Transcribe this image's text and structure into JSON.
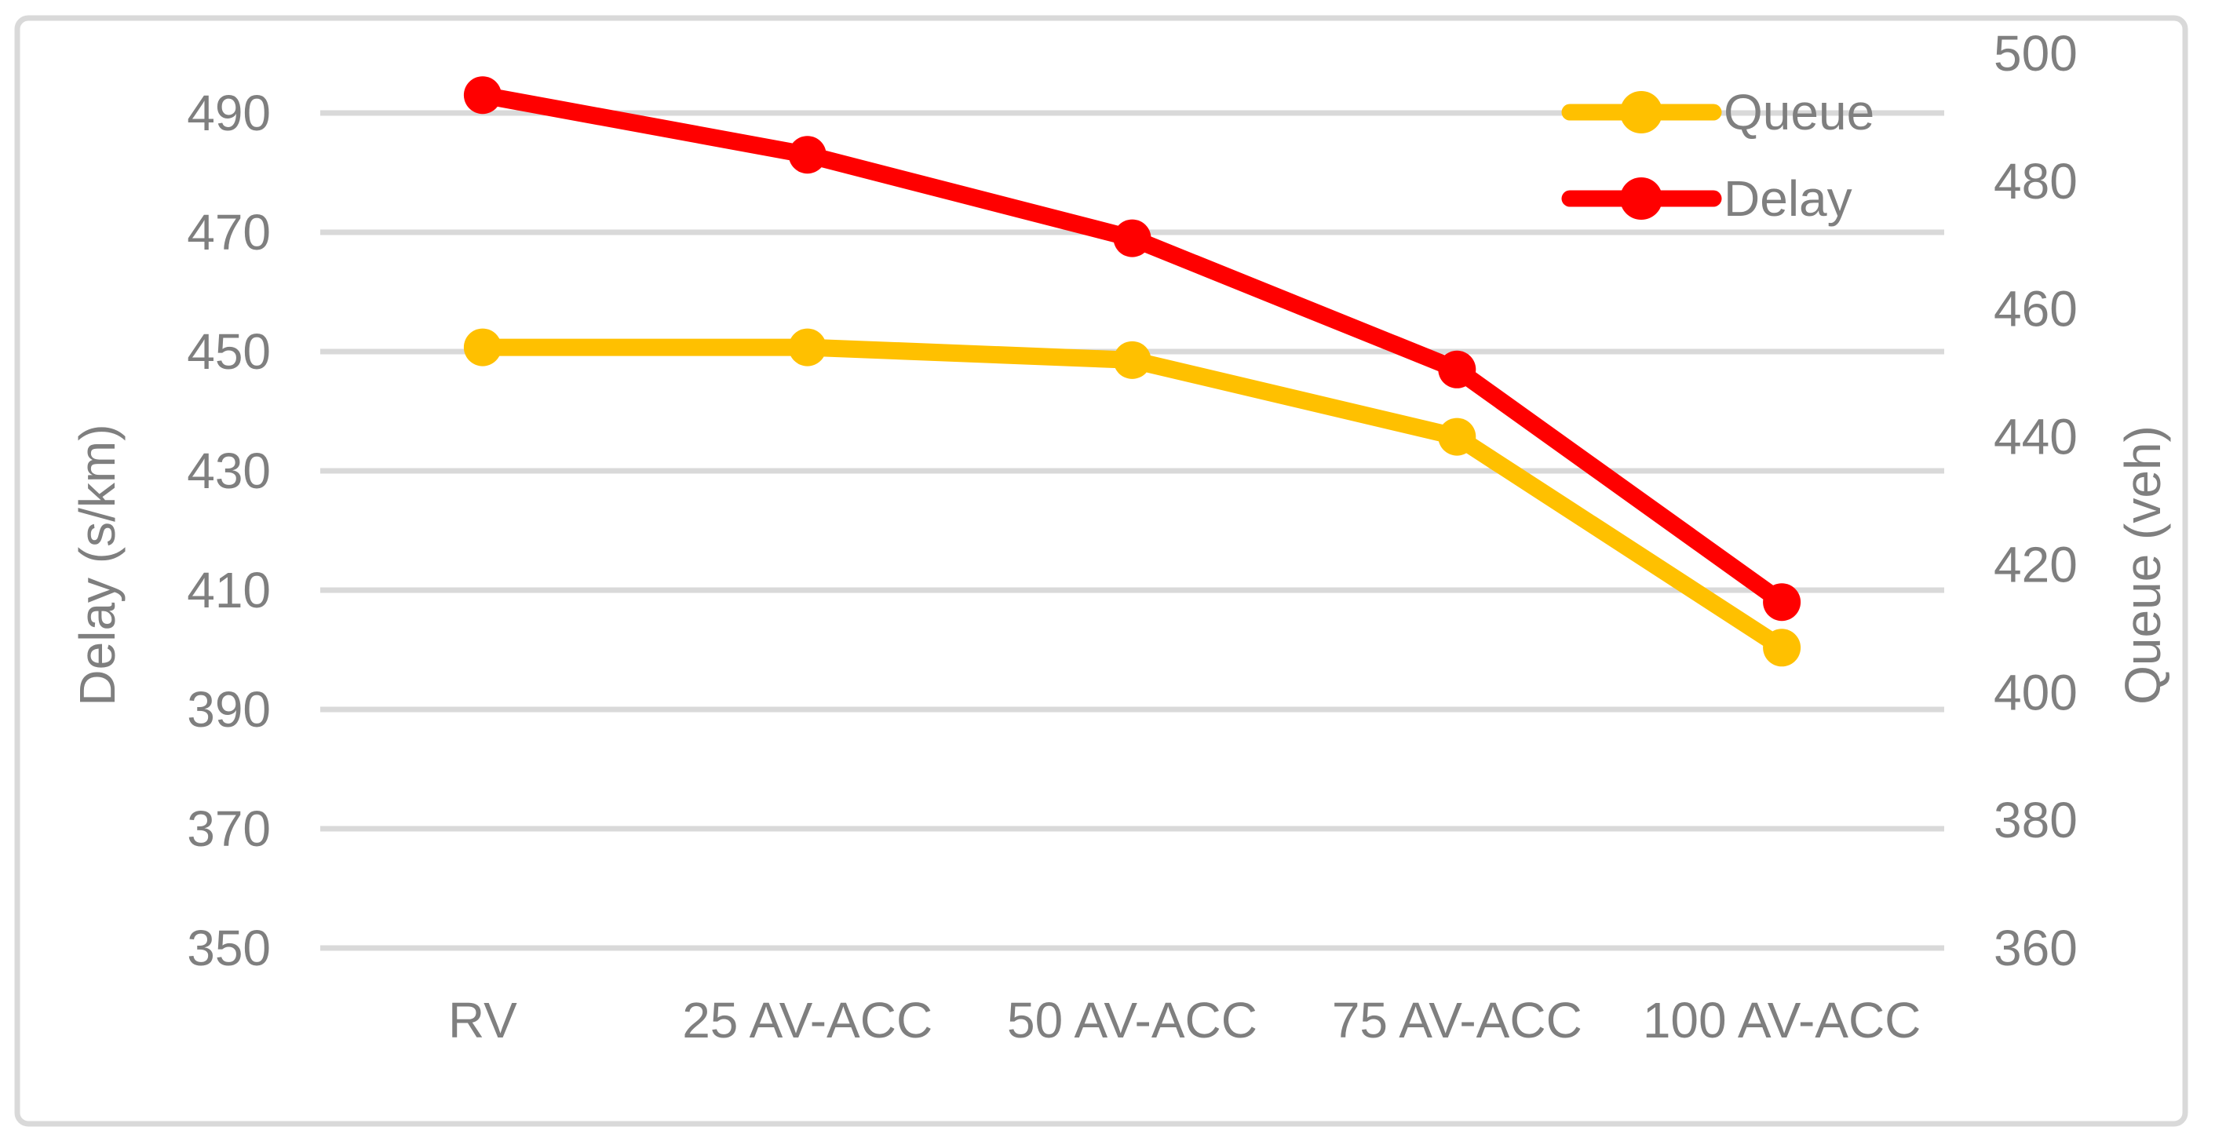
{
  "chart_data": {
    "type": "line",
    "title": "",
    "categories": [
      "RV",
      "25 AV-ACC",
      "50 AV-ACC",
      "75 AV-ACC",
      "100 AV-ACC"
    ],
    "series": [
      {
        "name": "Queue",
        "axis": "right",
        "color": "#FFC000",
        "values": [
          454,
          454,
          452,
          440,
          407
        ]
      },
      {
        "name": "Delay",
        "axis": "left",
        "color": "#FF0000",
        "values": [
          493,
          483,
          469,
          447,
          408
        ]
      }
    ],
    "left_axis": {
      "label": "Delay (s/km)",
      "min": 350,
      "max": 500,
      "ticks": [
        350,
        370,
        390,
        410,
        430,
        450,
        470,
        490
      ]
    },
    "right_axis": {
      "label": "Queue (veh)",
      "min": 360,
      "max": 500,
      "ticks": [
        360,
        380,
        400,
        420,
        440,
        460,
        480,
        500
      ]
    },
    "legend": {
      "position": "top-right",
      "entries": [
        "Queue",
        "Delay"
      ]
    },
    "grid": {
      "horizontal": true
    },
    "colors": {
      "grid": "#D9D9D9",
      "text": "#7F7F7F",
      "border": "#D9D9D9",
      "background": "#FFFFFF"
    }
  }
}
